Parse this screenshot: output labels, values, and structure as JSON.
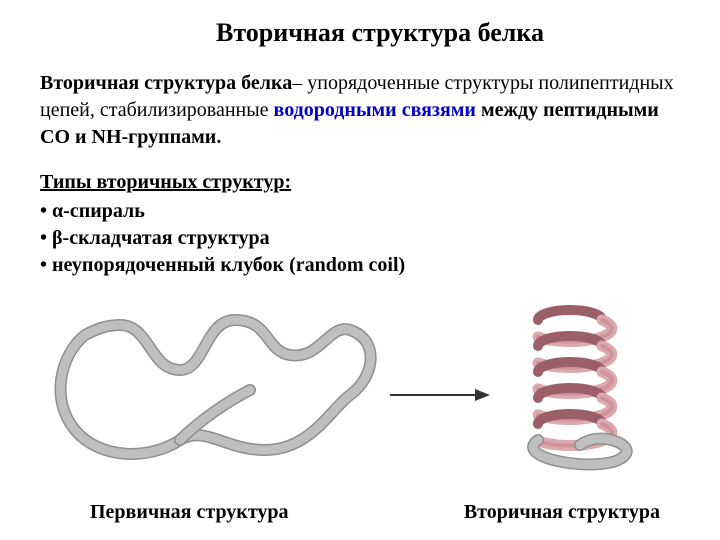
{
  "title": "Вторичная структура белка",
  "definition": {
    "lead": "Вторичная структура белка",
    "mid1": "– упорядоченные структуры полипептидных цепей, стабилизированные ",
    "hbond": "водородными связями",
    "mid2": " между пептидными CO и NH-группами."
  },
  "types": {
    "heading": "Типы вторичных структур:",
    "items": [
      "α-спираль",
      "β-складчатая структура",
      "неупорядоченный клубок (random coil)"
    ]
  },
  "figure": {
    "caption_left": "Первичная структура",
    "caption_right": "Вторичная структура",
    "colors": {
      "strand_light": "#bfbfbf",
      "strand_shadow": "#8e8e8e",
      "strand_dark": "#6a6a6a",
      "helix_light": "#dca9ae",
      "helix_mid": "#c6868f",
      "helix_dark": "#9a5f68",
      "arrow": "#333333",
      "background": "#ffffff"
    },
    "stroke_width_main": 9,
    "stroke_width_shadow": 12,
    "arrow_width": 2
  }
}
